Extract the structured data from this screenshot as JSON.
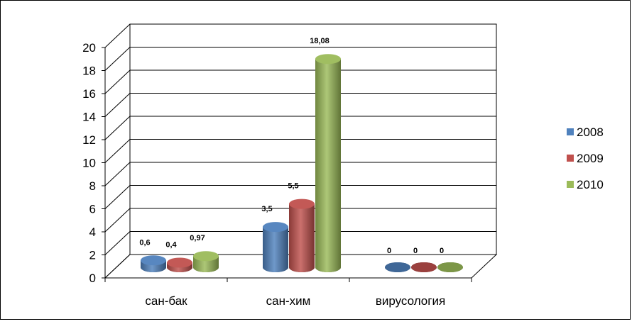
{
  "chart_data": {
    "type": "bar",
    "categories": [
      "сан-бак",
      "сан-хим",
      "вирусология"
    ],
    "series": [
      {
        "name": "2008",
        "values": [
          0.6,
          3.5,
          0
        ],
        "labels": [
          "0,6",
          "3,5",
          "0"
        ],
        "color": "#4F81BD"
      },
      {
        "name": "2009",
        "values": [
          0.4,
          5.5,
          0
        ],
        "labels": [
          "0,4",
          "5,5",
          "0"
        ],
        "color": "#C0504D"
      },
      {
        "name": "2010",
        "values": [
          0.97,
          18.08,
          0
        ],
        "labels": [
          "0,97",
          "18,08",
          "0"
        ],
        "color": "#9BBB59"
      }
    ],
    "ylim": [
      0,
      20
    ],
    "yticks": [
      "0",
      "2",
      "4",
      "6",
      "8",
      "10",
      "12",
      "14",
      "16",
      "18",
      "20"
    ],
    "grid": true,
    "legend_position": "right",
    "style": "3d-cylinder"
  }
}
